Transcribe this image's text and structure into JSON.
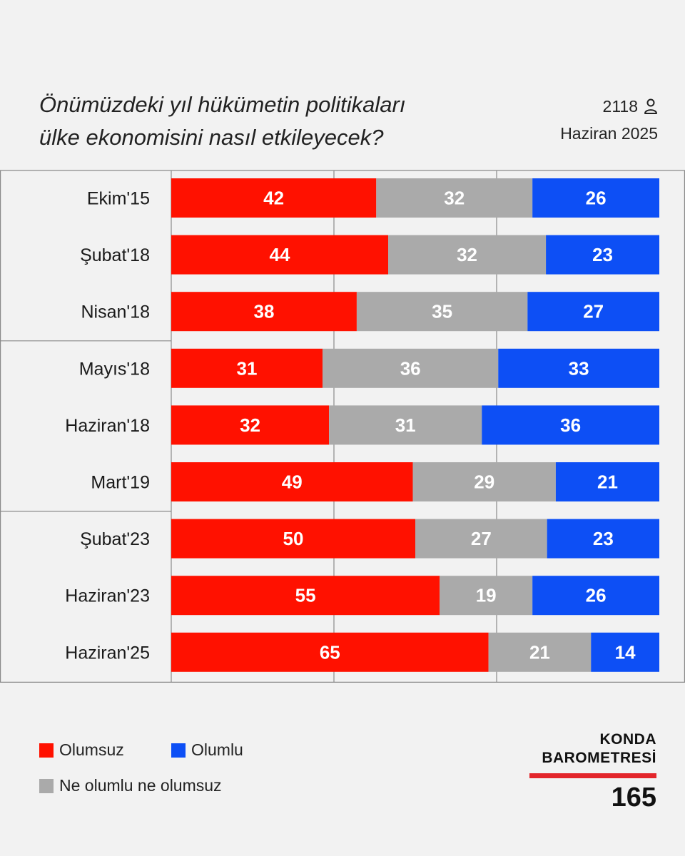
{
  "header": {
    "title_line1": "Önümüzdeki yıl hükümetin politikaları",
    "title_line2": "ülke ekonomisini nasıl etkileyecek?",
    "sample_size": "2118",
    "date": "Haziran 2025",
    "sample_icon": "person-icon"
  },
  "chart_data": {
    "type": "bar",
    "orientation": "horizontal",
    "stacked": true,
    "percent": true,
    "categories": [
      "Ekim'15",
      "Şubat'18",
      "Nisan'18",
      "Mayıs'18",
      "Haziran'18",
      "Mart'19",
      "Şubat'23",
      "Haziran'23",
      "Haziran'25"
    ],
    "series": [
      {
        "name": "Olumsuz",
        "color": "#ff1100",
        "values": [
          42,
          44,
          38,
          31,
          32,
          49,
          50,
          55,
          65
        ]
      },
      {
        "name": "Ne olumlu ne olumsuz",
        "color": "#aaaaaa",
        "values": [
          32,
          32,
          35,
          36,
          31,
          29,
          27,
          19,
          21
        ]
      },
      {
        "name": "Olumlu",
        "color": "#0d4ff5",
        "values": [
          26,
          23,
          27,
          33,
          36,
          21,
          23,
          26,
          14
        ]
      }
    ],
    "legend_position": "bottom-left"
  },
  "legend": {
    "items": [
      {
        "label": "Olumsuz",
        "color": "#ff1100"
      },
      {
        "label": "Olumlu",
        "color": "#0d4ff5"
      },
      {
        "label": "Ne olumlu ne olumsuz",
        "color": "#aaaaaa"
      }
    ]
  },
  "brand": {
    "line1": "KONDA",
    "line2": "BAROMETRESİ",
    "issue": "165",
    "accent": "#e3252b"
  }
}
